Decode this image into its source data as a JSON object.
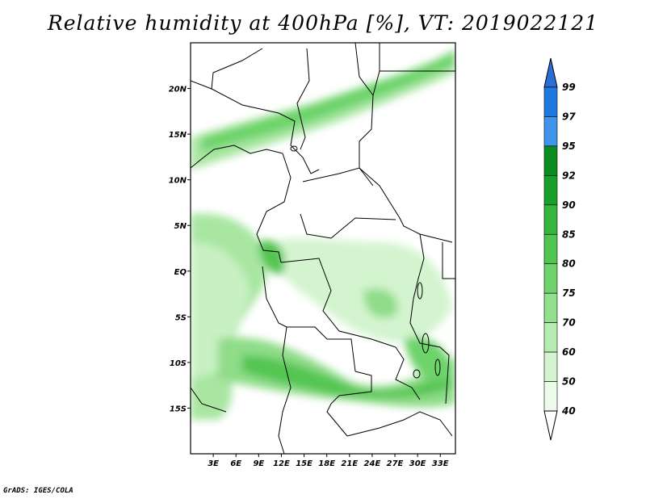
{
  "title": "Relative humidity at 400hPa [%], VT: 2019022121",
  "footer": "GrADS: IGES/COLA",
  "map": {
    "lon_labels": [
      "3E",
      "6E",
      "9E",
      "12E",
      "15E",
      "18E",
      "21E",
      "24E",
      "27E",
      "30E",
      "33E"
    ],
    "lat_labels": [
      "20N",
      "15N",
      "10N",
      "5N",
      "EQ",
      "5S",
      "10S",
      "15S"
    ],
    "lon_range": [
      0,
      35
    ],
    "lat_range": [
      -20,
      25
    ]
  },
  "colorbar": {
    "levels": [
      "99",
      "97",
      "95",
      "92",
      "90",
      "85",
      "80",
      "75",
      "70",
      "60",
      "50",
      "40"
    ],
    "colors": [
      "#2a6fd6",
      "#1f7ae0",
      "#3f95ea",
      "#0b8c1e",
      "#19a02a",
      "#36b53c",
      "#52c551",
      "#6dd36a",
      "#92df8d",
      "#b6ebb1",
      "#d3f4cf",
      "#ecfbea"
    ],
    "top_color": "#2a6fd6",
    "bottom_color": "#ffffff"
  }
}
